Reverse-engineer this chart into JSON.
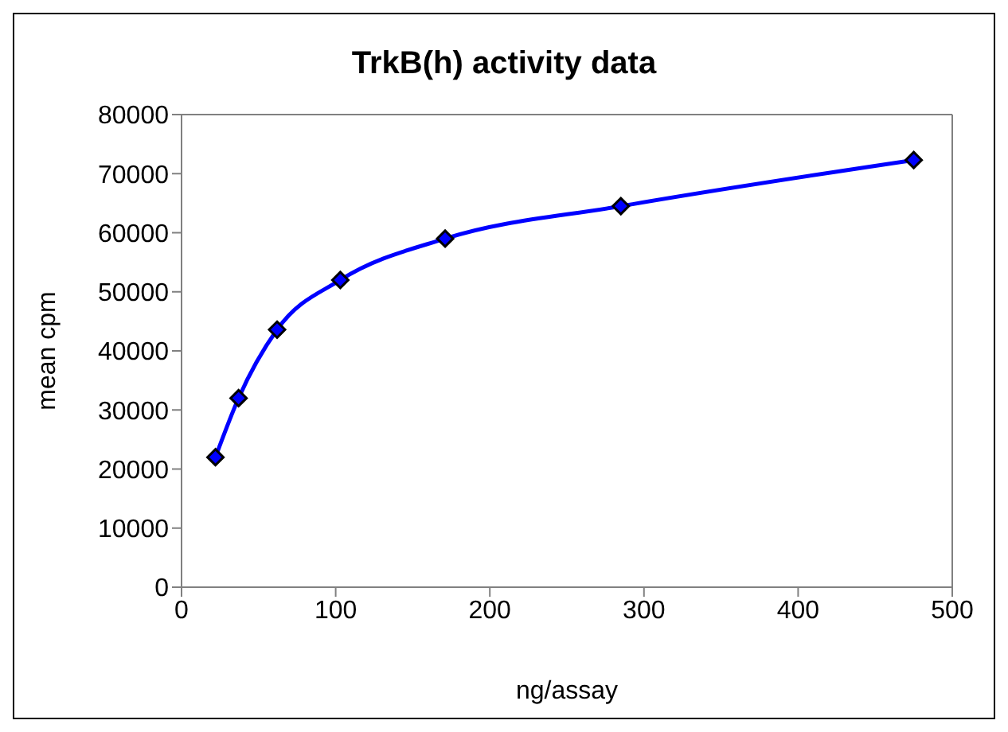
{
  "chart_data": {
    "type": "line",
    "title": "TrkB(h) activity data",
    "xlabel": "ng/assay",
    "ylabel": "mean cpm",
    "x": [
      22,
      37,
      62,
      103,
      171,
      285,
      475
    ],
    "series": [
      {
        "color": "#0000ff",
        "values": [
          22000,
          32000,
          43600,
          52000,
          59000,
          64500,
          72300
        ]
      }
    ],
    "marker": "diamond",
    "line_style": "solid",
    "xlim": [
      0,
      500
    ],
    "xticks": [
      0,
      100,
      200,
      300,
      400,
      500
    ],
    "ylim": [
      0,
      80000
    ],
    "yticks": [
      0,
      10000,
      20000,
      30000,
      40000,
      50000,
      60000,
      70000,
      80000
    ],
    "grid": false
  }
}
